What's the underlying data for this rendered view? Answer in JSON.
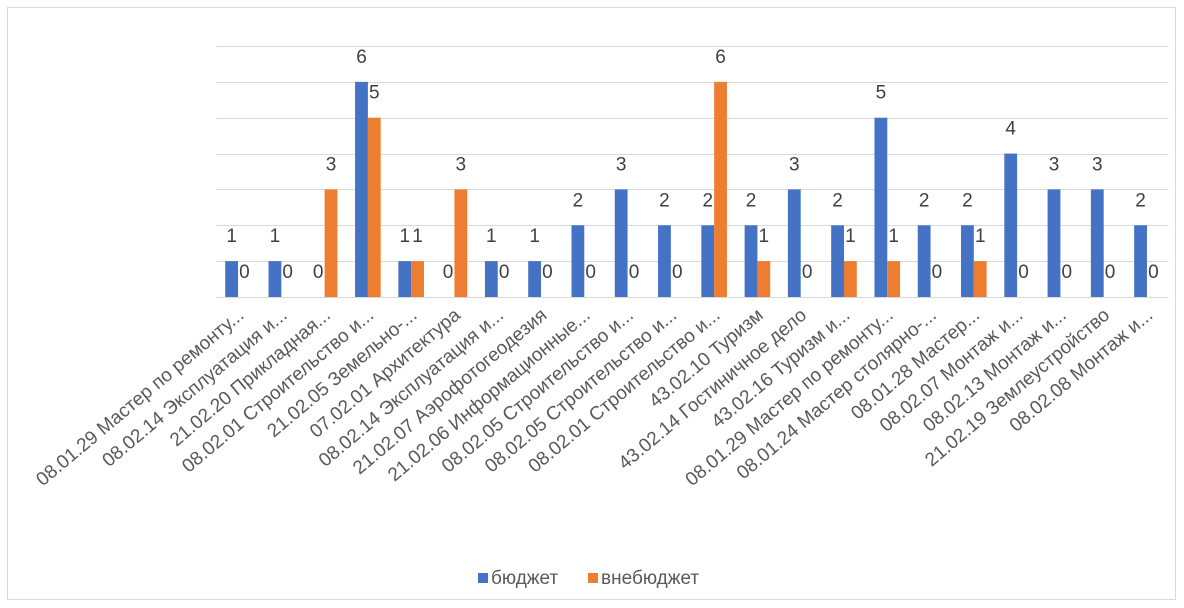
{
  "chart_data": {
    "type": "bar",
    "categories": [
      "08.01.29 Мастер по ремонту...",
      "08.02.14 Эксплуатация и...",
      "21.02.20 Прикладная...",
      "08.02.01 Строительство и...",
      "21.02.05 Земельно-...",
      "07.02.01 Архитектура",
      "08.02.14 Эксплуатация и...",
      "21.02.07 Аэрофотогеодезия",
      "21.02.06 Информационные...",
      "08.02.05 Строительство и...",
      "08.02.05 Строительство и...",
      "08.02.01 Строительство и...",
      "43.02.10 Туризм",
      "43.02.14 Гостиничное дело",
      "43.02.16 Туризм и...",
      "08.01.29 Мастер по ремонту...",
      "08.01.24 Мастер столярно-...",
      "08.01.28 Мастер...",
      "08.02.07 Монтаж и...",
      "08.02.13 Монтаж и...",
      "21.02.19 Землеустройство",
      "08.02.08 Монтаж и..."
    ],
    "series": [
      {
        "name": "бюджет",
        "color": "#4472C4",
        "values": [
          1,
          1,
          0,
          6,
          1,
          0,
          1,
          1,
          2,
          3,
          2,
          2,
          2,
          3,
          2,
          5,
          2,
          2,
          4,
          3,
          3,
          2
        ]
      },
      {
        "name": "внебюджет",
        "color": "#ED7D31",
        "values": [
          0,
          0,
          3,
          5,
          1,
          3,
          0,
          0,
          0,
          0,
          0,
          6,
          1,
          0,
          1,
          1,
          0,
          1,
          0,
          0,
          0,
          0
        ]
      }
    ],
    "ylim": [
      0,
      7
    ],
    "grid": true,
    "legend": "bottom",
    "data_labels": true
  }
}
